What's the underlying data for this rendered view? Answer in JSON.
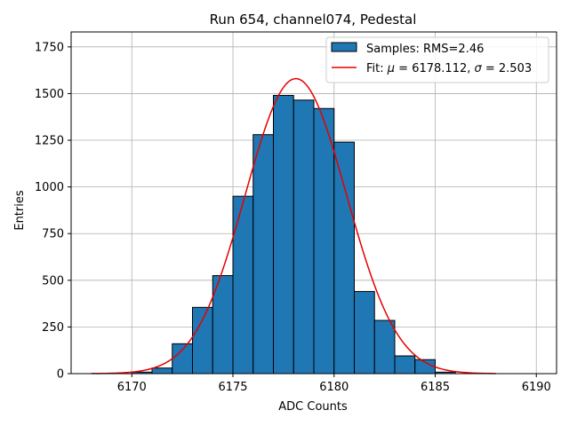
{
  "chart_data": {
    "type": "histogram",
    "title": "Run 654, channel074, Pedestal",
    "xlabel": "ADC Counts",
    "ylabel": "Entries",
    "xlim": [
      6167,
      6191
    ],
    "ylim": [
      0,
      1830
    ],
    "xticks": [
      6170,
      6175,
      6180,
      6185,
      6190
    ],
    "yticks": [
      0,
      250,
      500,
      750,
      1000,
      1250,
      1500,
      1750
    ],
    "grid": true,
    "legend_position": "top-right",
    "bins": {
      "edges": [
        6170,
        6171,
        6172,
        6173,
        6174,
        6175,
        6176,
        6177,
        6178,
        6179,
        6180,
        6181,
        6182,
        6183,
        6184,
        6185,
        6186
      ],
      "values": [
        8,
        30,
        160,
        355,
        525,
        950,
        1280,
        1490,
        1465,
        1420,
        1240,
        440,
        285,
        95,
        75,
        8
      ],
      "color": "#1f77b4",
      "edge_color": "#000000",
      "legend": "Samples: RMS=2.46"
    },
    "fit": {
      "type": "gaussian",
      "mu": 6178.112,
      "sigma": 2.503,
      "amplitude": 1580,
      "x_range": [
        6168,
        6188
      ],
      "color": "#e60000",
      "legend_prefix": "Fit: ",
      "legend_mu_symbol": "μ",
      "legend_mu_text": " = 6178.112, ",
      "legend_sigma_symbol": "σ",
      "legend_sigma_text": " = 2.503"
    }
  }
}
